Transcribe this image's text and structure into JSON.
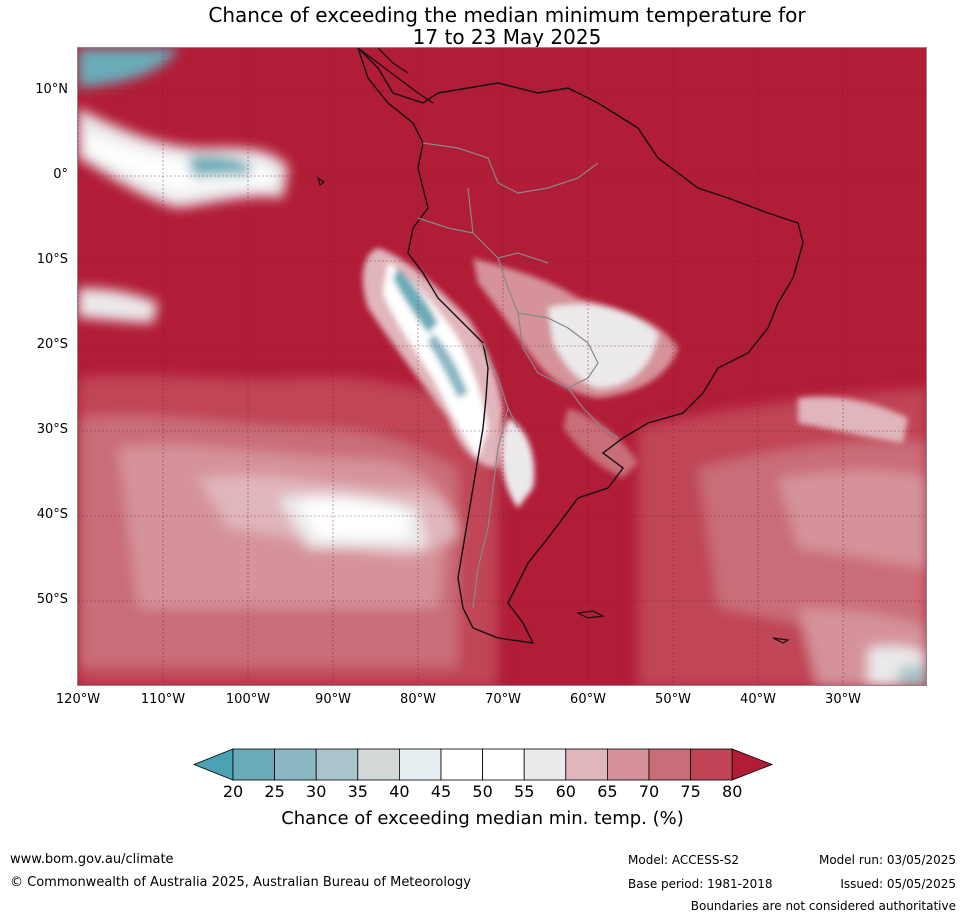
{
  "title": {
    "line1": "Chance of exceeding the median minimum temperature for",
    "line2": "17 to 23 May 2025"
  },
  "lat_labels": [
    "10°N",
    "0°",
    "10°S",
    "20°S",
    "30°S",
    "40°S",
    "50°S"
  ],
  "lon_labels": [
    "120°W",
    "110°W",
    "100°W",
    "90°W",
    "80°W",
    "70°W",
    "60°W",
    "50°W",
    "40°W",
    "30°W"
  ],
  "colorbar": {
    "ticks": [
      "20",
      "25",
      "30",
      "35",
      "40",
      "45",
      "50",
      "55",
      "60",
      "65",
      "70",
      "75",
      "80"
    ],
    "colors": [
      "#4aa3b4",
      "#6aabb8",
      "#8bb7c5",
      "#a9c4ca",
      "#d3d9d9",
      "#e8eff2",
      "#ffffff",
      "#ffffff",
      "#ebe9ea",
      "#e0b5bb",
      "#d5929a",
      "#c96d78",
      "#c04455",
      "#b11c37"
    ],
    "label": "Chance of exceeding median min. temp. (%)"
  },
  "footer": {
    "website": "www.bom.gov.au/climate",
    "copyright": "© Commonwealth of Australia 2025, Australian Bureau of Meteorology",
    "model": "Model: ACCESS-S2",
    "base_period": "Base period: 1981-2018",
    "model_run": "Model run: 03/05/2025",
    "issued": "Issued: 05/05/2025",
    "disclaimer": "Boundaries are not considered authoritative"
  }
}
